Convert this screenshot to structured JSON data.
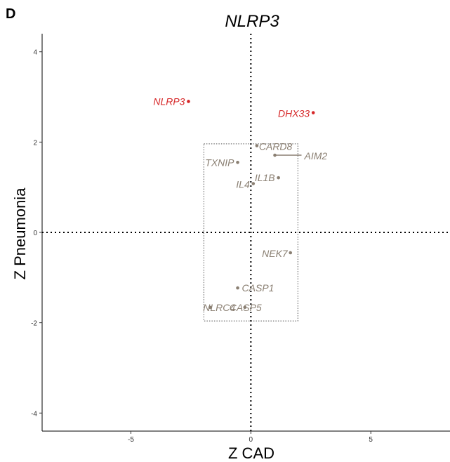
{
  "panel_label": "D",
  "chart_data": {
    "type": "scatter",
    "title": "NLRP3",
    "xlabel": "Z CAD",
    "ylabel": "Z Pneumonia",
    "xlim": [
      -8.7,
      8.3
    ],
    "ylim": [
      -4.4,
      4.4
    ],
    "x_ticks": [
      -5,
      0,
      5
    ],
    "y_ticks": [
      -4,
      -2,
      0,
      2,
      4
    ],
    "reference_lines": {
      "x": 0,
      "y": 0,
      "style": "dotted"
    },
    "threshold_box": {
      "x": [
        -1.96,
        1.96
      ],
      "y": [
        -1.96,
        1.96
      ],
      "style": "dotted"
    },
    "grid": false,
    "colors": {
      "significant": "#d62728",
      "non_significant": "#8a7f72"
    },
    "points": [
      {
        "label": "NLRP3",
        "x": -2.6,
        "y": 2.9,
        "significant": true
      },
      {
        "label": "DHX33",
        "x": 2.6,
        "y": 2.65,
        "significant": true
      },
      {
        "label": "CARD8",
        "x": 0.25,
        "y": 1.92,
        "significant": false
      },
      {
        "label": "AIM2",
        "x": 1.0,
        "y": 1.71,
        "significant": false
      },
      {
        "label": "TXNIP",
        "x": -0.55,
        "y": 1.55,
        "significant": false
      },
      {
        "label": "IL1B",
        "x": 1.15,
        "y": 1.21,
        "significant": false
      },
      {
        "label": "IL4",
        "x": 0.1,
        "y": 1.08,
        "significant": false
      },
      {
        "label": "NEK7",
        "x": 1.65,
        "y": -0.45,
        "significant": false
      },
      {
        "label": "CASP1",
        "x": -0.55,
        "y": -1.23,
        "significant": false
      },
      {
        "label": "NLRC4",
        "x": -1.7,
        "y": -1.66,
        "significant": false
      },
      {
        "label": "CASP5",
        "x": -0.25,
        "y": -1.66,
        "significant": false
      }
    ]
  }
}
